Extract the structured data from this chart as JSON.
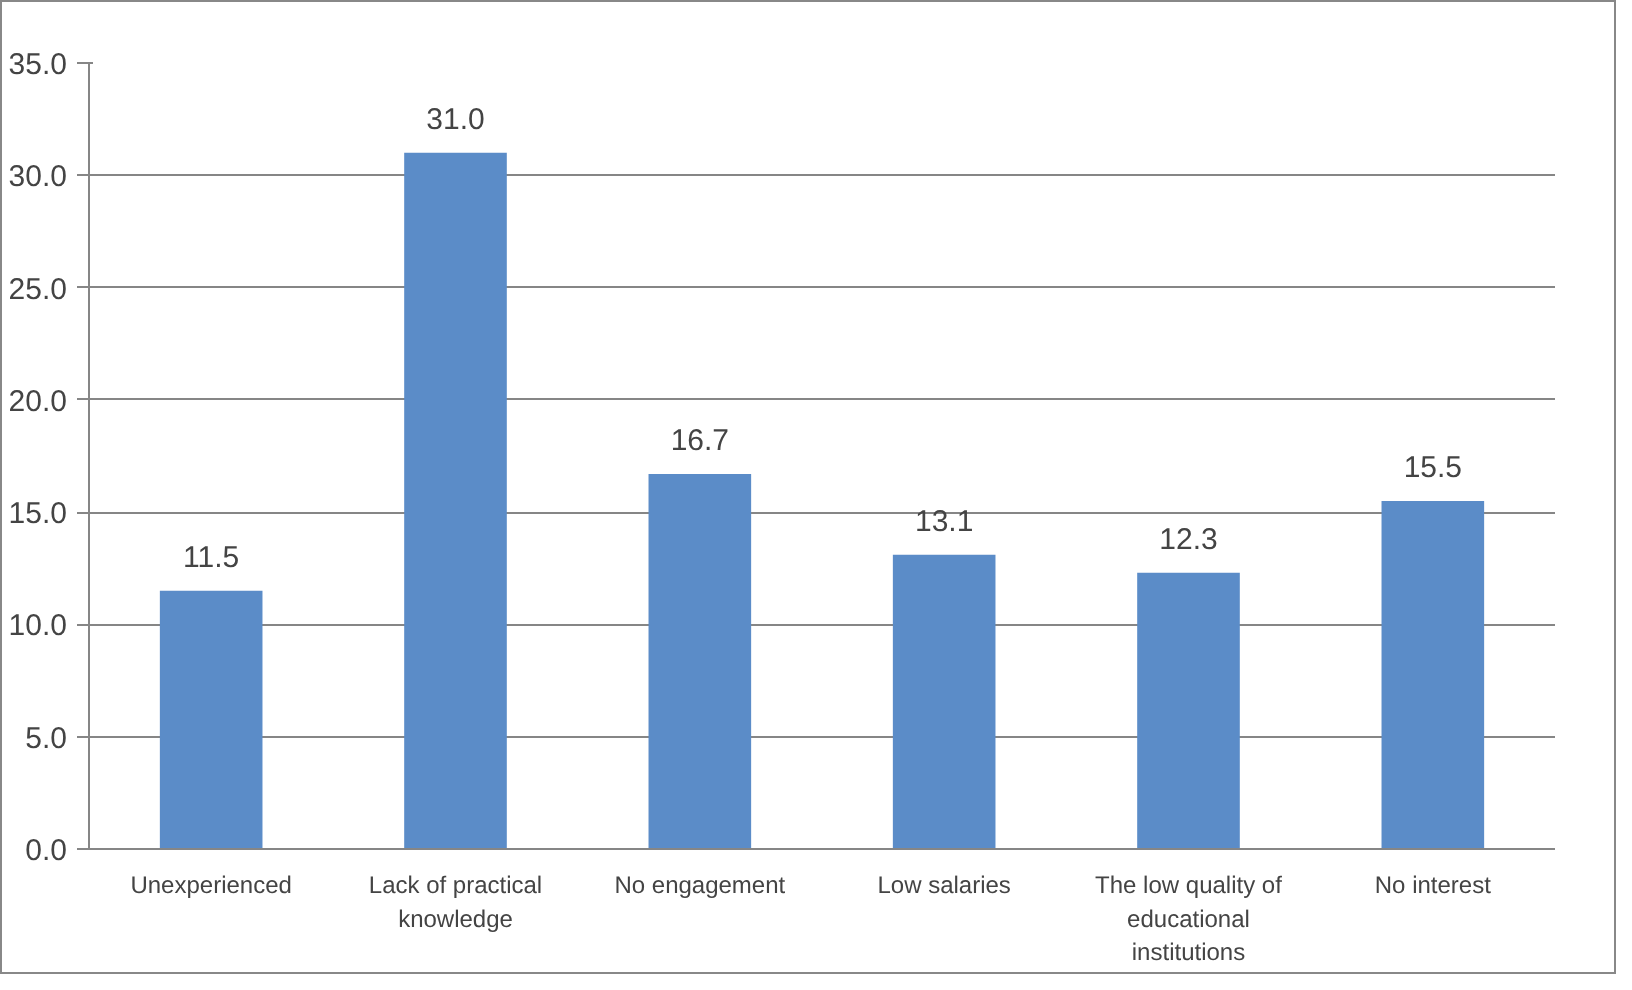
{
  "chart_data": {
    "type": "bar",
    "categories": [
      "Unexperienced",
      "Lack of practical knowledge",
      "No engagement",
      "Low salaries",
      "The low quality of educational institutions",
      "No interest"
    ],
    "values": [
      11.5,
      31.0,
      16.7,
      13.1,
      12.3,
      15.5
    ],
    "value_labels": [
      "11.5",
      "31.0",
      "16.7",
      "13.1",
      "12.3",
      "15.5"
    ],
    "color": "#5b8cc8",
    "ylim": [
      0,
      35
    ],
    "yticks": [
      {
        "value": 0,
        "label": "0.0"
      },
      {
        "value": 5,
        "label": "5.0"
      },
      {
        "value": 10,
        "label": "10.0"
      },
      {
        "value": 15,
        "label": "15.0"
      },
      {
        "value": 20,
        "label": "20.0"
      },
      {
        "value": 25,
        "label": "25.0"
      },
      {
        "value": 30,
        "label": "30.0"
      },
      {
        "value": 35,
        "label": "35.0"
      }
    ],
    "grid": "y"
  }
}
